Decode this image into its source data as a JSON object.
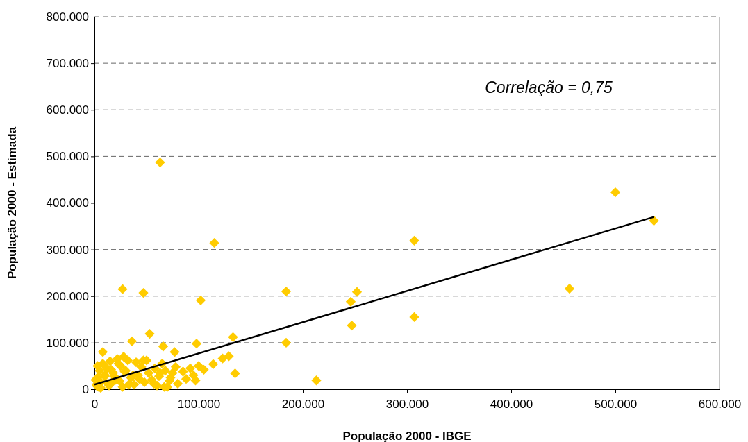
{
  "chart_data": {
    "type": "scatter",
    "xlabel": "População 2000 - IBGE",
    "ylabel": "População 2000 - Estimada",
    "annotations": [
      "Correlação = 0,75"
    ],
    "xlim": [
      0,
      600000
    ],
    "ylim": [
      0,
      800000
    ],
    "xticks": [
      0,
      {
        "value": 100000,
        "label": "100.000"
      },
      {
        "value": 200000,
        "label": "200.000"
      },
      {
        "value": 300000,
        "label": "300.000"
      },
      {
        "value": 400000,
        "label": "400.000"
      },
      {
        "value": 500000,
        "label": "500.000"
      },
      {
        "value": 600000,
        "label": "600.000"
      }
    ],
    "yticks": [
      0,
      {
        "value": 100000,
        "label": "100.000"
      },
      {
        "value": 200000,
        "label": "200.000"
      },
      {
        "value": 300000,
        "label": "300.000"
      },
      {
        "value": 400000,
        "label": "400.000"
      },
      {
        "value": 500000,
        "label": "500.000"
      },
      {
        "value": 600000,
        "label": "600.000"
      },
      {
        "value": 700000,
        "label": "700.000"
      },
      {
        "value": 800000,
        "label": "800.000"
      }
    ],
    "grid": "y",
    "marker": "diamond",
    "series": [
      {
        "type": "scatter",
        "color": "#ffcc00",
        "x": [
          63000,
          115000,
          500000,
          537000,
          307000,
          307000,
          456000,
          246000,
          252000,
          247000,
          184000,
          184000,
          213000,
          27000,
          47000,
          102000,
          53000,
          36000,
          98000,
          133000,
          135000,
          66000,
          8000,
          77000,
          129000,
          123000,
          97000,
          114000,
          105000,
          2000,
          3000,
          5000,
          6000,
          8000,
          10000,
          12000,
          14000,
          15000,
          18000,
          20000,
          22000,
          25000,
          27000,
          30000,
          32000,
          35000,
          38000,
          40000,
          42000,
          45000,
          48000,
          50000,
          52000,
          55000,
          58000,
          60000,
          62000,
          65000,
          68000,
          70000,
          72000,
          75000,
          78000,
          80000,
          85000,
          88000,
          92000,
          95000,
          100000,
          4000,
          13000,
          16000,
          19000,
          24000,
          28000,
          33000,
          37000,
          43000,
          47000,
          57000,
          63000,
          67000,
          73000,
          3000,
          6000,
          10000,
          17000,
          23000,
          29000,
          1000,
          2000
        ],
        "values": [
          487000,
          314000,
          423000,
          362000,
          319000,
          155000,
          216000,
          188000,
          209000,
          137000,
          210000,
          100000,
          19000,
          215000,
          207000,
          191000,
          119000,
          103000,
          98000,
          112000,
          34000,
          92000,
          80000,
          80000,
          71000,
          66000,
          19000,
          54000,
          42000,
          10000,
          25000,
          40000,
          15000,
          55000,
          30000,
          45000,
          8000,
          60000,
          35000,
          20000,
          65000,
          50000,
          5000,
          40000,
          62000,
          25000,
          10000,
          58000,
          30000,
          48000,
          15000,
          62000,
          35000,
          20000,
          45000,
          8000,
          28000,
          55000,
          40000,
          5000,
          18000,
          35000,
          48000,
          12000,
          38000,
          22000,
          45000,
          30000,
          50000,
          5000,
          12000,
          42000,
          28000,
          18000,
          70000,
          10000,
          30000,
          22000,
          62000,
          12000,
          35000,
          5000,
          25000,
          50000,
          3000,
          28000,
          15000,
          55000,
          38000,
          20000,
          8000
        ]
      },
      {
        "type": "line",
        "color": "#000000",
        "x": [
          0,
          537000
        ],
        "values": [
          10000,
          370000
        ],
        "marker": "none",
        "line_style": "solid"
      }
    ]
  }
}
